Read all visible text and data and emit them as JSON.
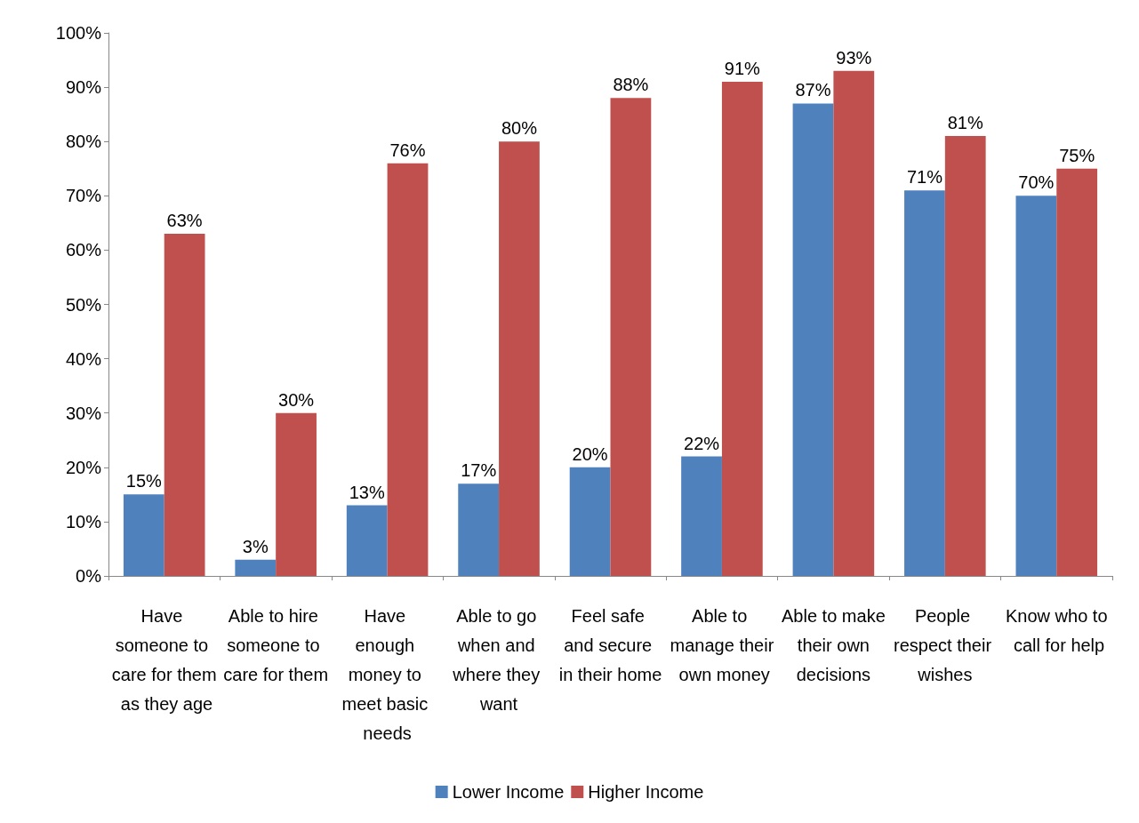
{
  "chart_data": {
    "type": "bar",
    "categories": [
      "Have someone to care for them as they age",
      "Able to hire someone to care for them",
      "Have enough money to meet basic needs",
      "Able to go when and where they want",
      "Feel safe and secure in their home",
      "Able to manage their own money",
      "Able to make their own decisions",
      "People respect their wishes",
      "Know who to call for help"
    ],
    "series": [
      {
        "name": "Lower Income",
        "color": "#4f81bd",
        "values": [
          15,
          3,
          13,
          17,
          20,
          22,
          87,
          71,
          70
        ],
        "value_labels": [
          "15%",
          "3%",
          "13%",
          "17%",
          "20%",
          "22%",
          "87%",
          "71%",
          "70%"
        ]
      },
      {
        "name": "Higher Income",
        "color": "#c0504d",
        "values": [
          63,
          30,
          76,
          80,
          88,
          91,
          93,
          81,
          75
        ],
        "value_labels": [
          "63%",
          "30%",
          "76%",
          "80%",
          "88%",
          "91%",
          "93%",
          "81%",
          "75%"
        ]
      }
    ],
    "ylim": [
      0,
      100
    ],
    "yticks": [
      {
        "value": 0,
        "label": "0%"
      },
      {
        "value": 10,
        "label": "10%"
      },
      {
        "value": 20,
        "label": "20%"
      },
      {
        "value": 30,
        "label": "30%"
      },
      {
        "value": 40,
        "label": "40%"
      },
      {
        "value": 50,
        "label": "50%"
      },
      {
        "value": 60,
        "label": "60%"
      },
      {
        "value": 70,
        "label": "70%"
      },
      {
        "value": 80,
        "label": "80%"
      },
      {
        "value": 90,
        "label": "90%"
      },
      {
        "value": 100,
        "label": "100%"
      }
    ],
    "grid": false,
    "legend": "bottom"
  }
}
